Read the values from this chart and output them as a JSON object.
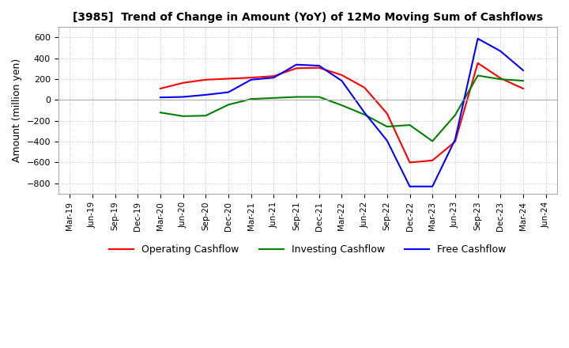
{
  "title": "[3985]  Trend of Change in Amount (YoY) of 12Mo Moving Sum of Cashflows",
  "ylabel": "Amount (million yen)",
  "ylim": [
    -900,
    700
  ],
  "yticks": [
    -800,
    -600,
    -400,
    -200,
    0,
    200,
    400,
    600
  ],
  "background_color": "#ffffff",
  "grid_color": "#bbbbbb",
  "dates": [
    "Mar-19",
    "Jun-19",
    "Sep-19",
    "Dec-19",
    "Mar-20",
    "Jun-20",
    "Sep-20",
    "Dec-20",
    "Mar-21",
    "Jun-21",
    "Sep-21",
    "Dec-21",
    "Mar-22",
    "Jun-22",
    "Sep-22",
    "Dec-22",
    "Mar-23",
    "Jun-23",
    "Sep-23",
    "Dec-23",
    "Mar-24",
    "Jun-24"
  ],
  "operating": [
    null,
    null,
    null,
    null,
    110,
    165,
    195,
    205,
    215,
    230,
    305,
    310,
    240,
    120,
    -130,
    -600,
    -580,
    -400,
    355,
    210,
    110,
    null
  ],
  "investing": [
    null,
    null,
    null,
    null,
    -120,
    -155,
    -150,
    -45,
    10,
    20,
    30,
    30,
    -50,
    -140,
    -255,
    -240,
    -395,
    -145,
    235,
    200,
    185,
    null
  ],
  "free": [
    null,
    null,
    null,
    null,
    25,
    30,
    50,
    75,
    195,
    215,
    340,
    330,
    185,
    -120,
    -390,
    -830,
    -830,
    -380,
    590,
    470,
    285,
    null
  ],
  "operating_color": "#ff0000",
  "investing_color": "#008000",
  "free_color": "#0000ff",
  "line_width": 1.5
}
